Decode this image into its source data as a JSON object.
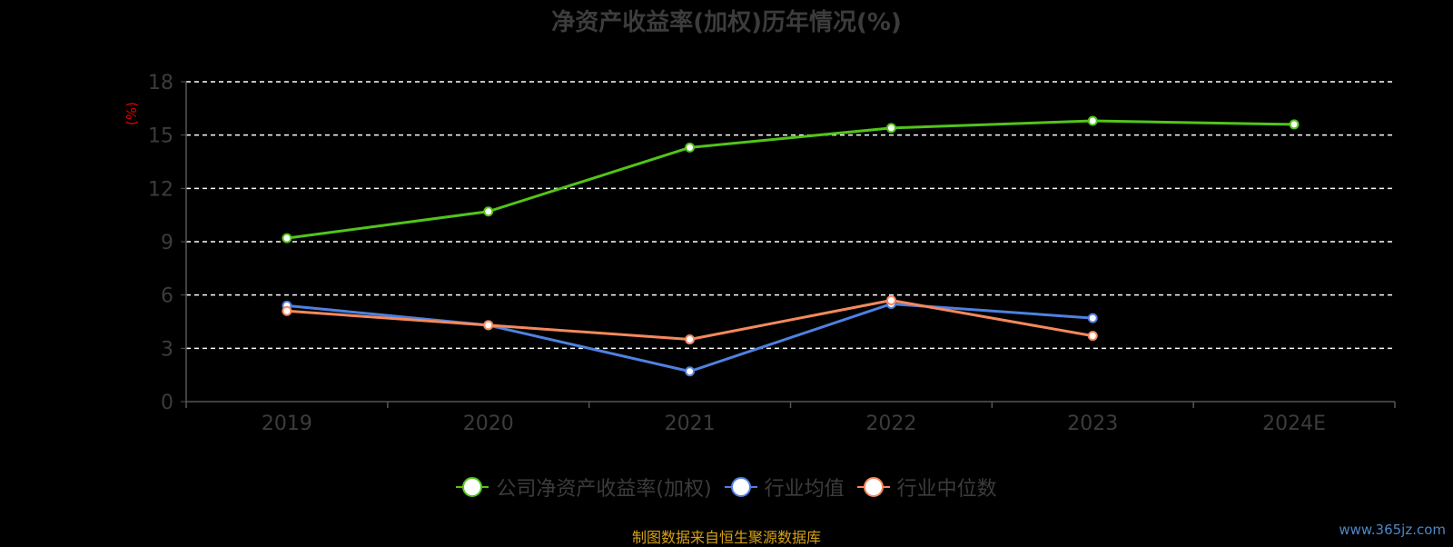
{
  "title": "净资产收益率(加权)历年情况(%)",
  "source": "制图数据来自恒生聚源数据库",
  "watermark": "www.365jz.com",
  "chart_data": {
    "type": "line",
    "title": "净资产收益率(加权)历年情况(%)",
    "ylabel": "(%)",
    "ylabel_color": "#e00000",
    "categories": [
      "2019",
      "2020",
      "2021",
      "2022",
      "2023",
      "2024E"
    ],
    "ylim": [
      0,
      18
    ],
    "yticks": [
      0,
      3,
      6,
      9,
      12,
      15,
      18
    ],
    "grid": "dashed horizontal",
    "legend_position": "bottom",
    "series": [
      {
        "name": "公司净资产收益率(加权)",
        "color": "#52c41a",
        "values": [
          9.2,
          10.7,
          14.3,
          15.4,
          15.8,
          15.6
        ]
      },
      {
        "name": "行业均值",
        "color": "#4f81e0",
        "values": [
          5.4,
          4.3,
          1.7,
          5.5,
          4.7,
          null
        ]
      },
      {
        "name": "行业中位数",
        "color": "#f5895c",
        "values": [
          5.1,
          4.3,
          3.5,
          5.7,
          3.7,
          null
        ]
      }
    ]
  }
}
